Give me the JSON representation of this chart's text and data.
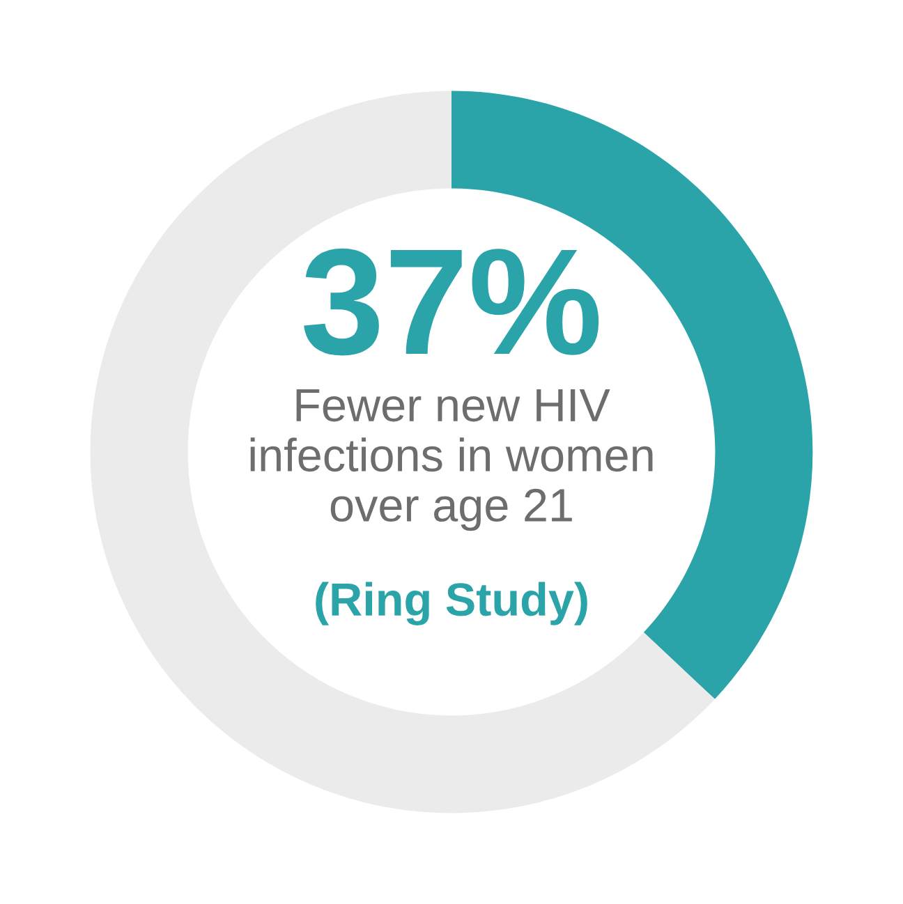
{
  "chart_data": {
    "type": "donut",
    "categories": [
      null,
      null
    ],
    "values": [
      37,
      63
    ],
    "colors": [
      "#2aa4a8",
      "#ebebeb"
    ],
    "value_labels": [
      "37%",
      null
    ],
    "annotations": [
      "Fewer new HIV\ninfections in women\nover age 21",
      "(Ring Study)"
    ],
    "legend": false
  }
}
